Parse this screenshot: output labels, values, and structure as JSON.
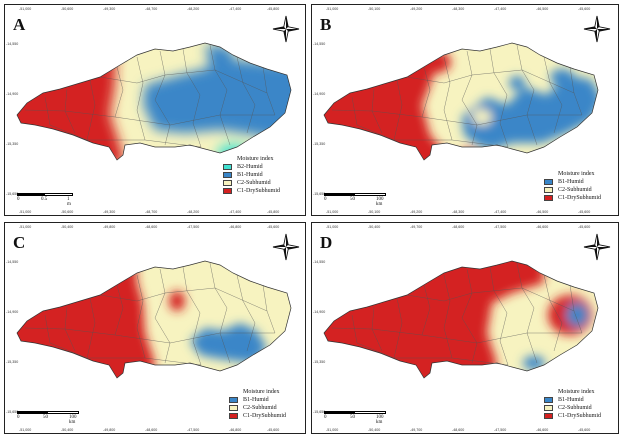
{
  "legend_title": "Moisture index",
  "colors": {
    "B2-Humid": "#40e0d0",
    "B1-Humid": "#3a86c8",
    "C2-Subhumid": "#f7f3c0",
    "C1-DrySubhumid": "#d42020"
  },
  "icons": {
    "north_arrow": "compass-star-icon"
  },
  "panels": {
    "a": {
      "label": "A",
      "legend": [
        "B2-Humid",
        "B1-Humid",
        "C2-Subhumid",
        "C1-DrySubhumid"
      ],
      "scale": {
        "labels": [
          "0",
          "0.5",
          "1 m"
        ]
      }
    },
    "b": {
      "label": "B",
      "legend": [
        "B1-Humid",
        "C2-Subhumid",
        "C1-DrySubhumid"
      ],
      "scale": {
        "labels": [
          "0",
          "50",
          "100 km"
        ]
      }
    },
    "c": {
      "label": "C",
      "legend": [
        "B1-Humid",
        "C2-Subhumid",
        "C1-DrySubhumid"
      ],
      "scale": {
        "labels": [
          "0",
          "50",
          "100 km"
        ]
      }
    },
    "d": {
      "label": "D",
      "legend": [
        "B1-Humid",
        "C2-Subhumid",
        "C1-DrySubhumid"
      ],
      "scale": {
        "labels": [
          "0",
          "50",
          "100 km"
        ]
      }
    }
  }
}
